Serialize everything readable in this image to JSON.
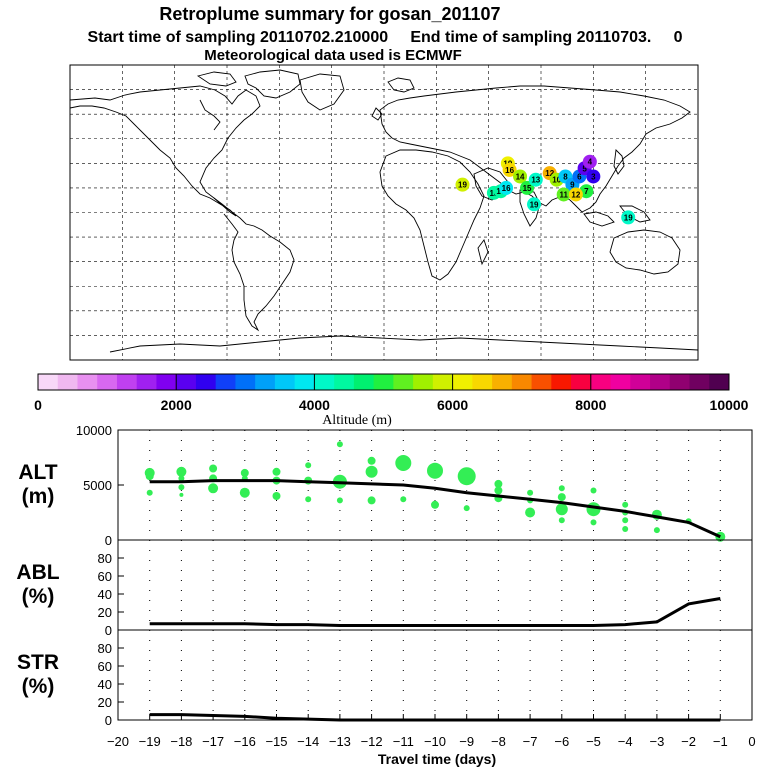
{
  "header": {
    "title": "Retroplume summary for gosan_201107",
    "sampling_line": "Start time of sampling 20110702.210000     End time of sampling 20110703.     0",
    "met_line": "Meteorological data used is ECMWF"
  },
  "colorbar": {
    "label": "Altitude (m)",
    "tick_labels": [
      "0",
      "2000",
      "4000",
      "6000",
      "8000",
      "10000"
    ],
    "min": 0,
    "max": 10000,
    "colors": [
      "#f8d8f8",
      "#f0b8f0",
      "#e890f0",
      "#d868f0",
      "#c040f0",
      "#a020f0",
      "#8000f0",
      "#5a00f0",
      "#3000f0",
      "#1040f8",
      "#0070f8",
      "#00a0f8",
      "#00c8f8",
      "#00e8f0",
      "#00f8c8",
      "#00f8a0",
      "#00f070",
      "#20f040",
      "#60f020",
      "#a0f000",
      "#d0f000",
      "#f0f000",
      "#f8d800",
      "#f8b000",
      "#f88800",
      "#f85000",
      "#f81800",
      "#f80040",
      "#f80080",
      "#f000a0",
      "#d00098",
      "#b00088",
      "#900070",
      "#700060",
      "#500050"
    ]
  },
  "chart_data": [
    {
      "type": "scatter",
      "name": "ALT",
      "panel_label": "ALT\n(m)",
      "panel_label_line1": "ALT",
      "panel_label_line2": "(m)",
      "ylim": [
        0,
        10000
      ],
      "yticks": [
        "10000",
        "5000",
        "0"
      ],
      "median_line": {
        "x": [
          -19,
          -18,
          -17,
          -16,
          -15,
          -14,
          -13,
          -12,
          -11,
          -10,
          -9,
          -8,
          -7,
          -6,
          -5,
          -4,
          -3,
          -2,
          -1
        ],
        "y": [
          5300,
          5300,
          5400,
          5400,
          5400,
          5300,
          5200,
          5100,
          5000,
          4700,
          4300,
          4000,
          3700,
          3400,
          3000,
          2600,
          2100,
          1600,
          300
        ]
      },
      "points": [
        {
          "x": -19,
          "y": 6100,
          "s": 5
        },
        {
          "x": -19,
          "y": 5800,
          "s": 4
        },
        {
          "x": -19,
          "y": 4300,
          "s": 3
        },
        {
          "x": -18,
          "y": 6200,
          "s": 5
        },
        {
          "x": -18,
          "y": 5600,
          "s": 3
        },
        {
          "x": -18,
          "y": 4800,
          "s": 3
        },
        {
          "x": -18,
          "y": 4100,
          "s": 2
        },
        {
          "x": -17,
          "y": 6500,
          "s": 4
        },
        {
          "x": -17,
          "y": 5600,
          "s": 4
        },
        {
          "x": -17,
          "y": 4700,
          "s": 5
        },
        {
          "x": -16,
          "y": 6100,
          "s": 4
        },
        {
          "x": -16,
          "y": 5600,
          "s": 3
        },
        {
          "x": -16,
          "y": 4300,
          "s": 5
        },
        {
          "x": -15,
          "y": 6200,
          "s": 4
        },
        {
          "x": -15,
          "y": 5400,
          "s": 4
        },
        {
          "x": -15,
          "y": 4000,
          "s": 4
        },
        {
          "x": -14,
          "y": 6800,
          "s": 3
        },
        {
          "x": -14,
          "y": 5400,
          "s": 4
        },
        {
          "x": -14,
          "y": 3700,
          "s": 3
        },
        {
          "x": -13,
          "y": 8700,
          "s": 3
        },
        {
          "x": -13,
          "y": 5300,
          "s": 7
        },
        {
          "x": -13,
          "y": 3600,
          "s": 3
        },
        {
          "x": -12,
          "y": 7200,
          "s": 4
        },
        {
          "x": -12,
          "y": 6200,
          "s": 6
        },
        {
          "x": -12,
          "y": 3600,
          "s": 4
        },
        {
          "x": -11,
          "y": 7000,
          "s": 8
        },
        {
          "x": -11,
          "y": 3700,
          "s": 3
        },
        {
          "x": -10,
          "y": 6300,
          "s": 8
        },
        {
          "x": -10,
          "y": 3200,
          "s": 4
        },
        {
          "x": -9,
          "y": 5800,
          "s": 9
        },
        {
          "x": -9,
          "y": 2900,
          "s": 3
        },
        {
          "x": -8,
          "y": 5100,
          "s": 4
        },
        {
          "x": -8,
          "y": 4500,
          "s": 4
        },
        {
          "x": -8,
          "y": 3800,
          "s": 4
        },
        {
          "x": -7,
          "y": 4300,
          "s": 3
        },
        {
          "x": -7,
          "y": 3600,
          "s": 3
        },
        {
          "x": -7,
          "y": 2500,
          "s": 5
        },
        {
          "x": -6,
          "y": 4700,
          "s": 3
        },
        {
          "x": -6,
          "y": 3900,
          "s": 4
        },
        {
          "x": -6,
          "y": 2800,
          "s": 6
        },
        {
          "x": -6,
          "y": 1800,
          "s": 3
        },
        {
          "x": -5,
          "y": 4500,
          "s": 3
        },
        {
          "x": -5,
          "y": 2800,
          "s": 7
        },
        {
          "x": -5,
          "y": 1600,
          "s": 3
        },
        {
          "x": -4,
          "y": 3200,
          "s": 3
        },
        {
          "x": -4,
          "y": 2500,
          "s": 3
        },
        {
          "x": -4,
          "y": 1800,
          "s": 3
        },
        {
          "x": -4,
          "y": 1000,
          "s": 3
        },
        {
          "x": -3,
          "y": 2300,
          "s": 5
        },
        {
          "x": -3,
          "y": 900,
          "s": 3
        },
        {
          "x": -2,
          "y": 1700,
          "s": 3
        },
        {
          "x": -1,
          "y": 300,
          "s": 5
        }
      ]
    },
    {
      "type": "line",
      "name": "ABL",
      "panel_label_line1": "ABL",
      "panel_label_line2": "(%)",
      "ylim": [
        0,
        100
      ],
      "yticks": [
        "80",
        "60",
        "40",
        "20",
        "0"
      ],
      "x": [
        -19,
        -18,
        -17,
        -16,
        -15,
        -14,
        -13,
        -12,
        -11,
        -10,
        -9,
        -8,
        -7,
        -6,
        -5,
        -4,
        -3,
        -2,
        -1
      ],
      "y": [
        7,
        7,
        7,
        7,
        6,
        6,
        5,
        5,
        5,
        5,
        5,
        5,
        5,
        5,
        5,
        6,
        9,
        29,
        35
      ]
    },
    {
      "type": "line",
      "name": "STR",
      "panel_label_line1": "STR",
      "panel_label_line2": "(%)",
      "ylim": [
        0,
        100
      ],
      "yticks": [
        "80",
        "60",
        "40",
        "20",
        "0"
      ],
      "x": [
        -19,
        -18,
        -17,
        -16,
        -15,
        -14,
        -13,
        -12,
        -11,
        -10,
        -9,
        -8,
        -7,
        -6,
        -5,
        -4,
        -3,
        -2,
        -1
      ],
      "y": [
        6,
        6,
        5,
        4,
        2,
        1,
        0,
        0,
        0,
        0,
        0,
        0,
        0,
        0,
        0,
        0,
        0,
        0,
        0
      ]
    }
  ],
  "xaxis": {
    "label": "Travel time (days)",
    "min": -20,
    "max": 0,
    "tick_labels": [
      "−20",
      "−19",
      "−18",
      "−17",
      "−16",
      "−15",
      "−14",
      "−13",
      "−12",
      "−11",
      "−10",
      "−9",
      "−8",
      "−7",
      "−6",
      "−5",
      "−4",
      "−3",
      "−2",
      "−1",
      "0"
    ]
  },
  "map": {
    "markers": [
      {
        "lon": 71,
        "lat": 30,
        "label": "19",
        "color": "#f0f000"
      },
      {
        "lon": 63,
        "lat": 12,
        "label": "18",
        "color": "#00f8a0"
      },
      {
        "lon": 67,
        "lat": 13,
        "label": "17",
        "color": "#00f8a0"
      },
      {
        "lon": 70,
        "lat": 15,
        "label": "16",
        "color": "#00e8f0"
      },
      {
        "lon": 45,
        "lat": 17,
        "label": "19",
        "color": "#d0f000"
      },
      {
        "lon": 72,
        "lat": 26,
        "label": "16",
        "color": "#f8d800"
      },
      {
        "lon": 78,
        "lat": 22,
        "label": "14",
        "color": "#a0f000"
      },
      {
        "lon": 82,
        "lat": 15,
        "label": "15",
        "color": "#20f040"
      },
      {
        "lon": 87,
        "lat": 20,
        "label": "13",
        "color": "#00f8c8"
      },
      {
        "lon": 95,
        "lat": 24,
        "label": "12",
        "color": "#f8b000"
      },
      {
        "lon": 99,
        "lat": 20,
        "label": "10",
        "color": "#a0f000"
      },
      {
        "lon": 104,
        "lat": 22,
        "label": "8",
        "color": "#00c8f8"
      },
      {
        "lon": 108,
        "lat": 17,
        "label": "9",
        "color": "#00a0f8"
      },
      {
        "lon": 112,
        "lat": 22,
        "label": "6",
        "color": "#0070f8"
      },
      {
        "lon": 115,
        "lat": 27,
        "label": "5",
        "color": "#5a00f0"
      },
      {
        "lon": 118,
        "lat": 31,
        "label": "4",
        "color": "#a020f0"
      },
      {
        "lon": 120,
        "lat": 22,
        "label": "3",
        "color": "#3000f0"
      },
      {
        "lon": 116,
        "lat": 13,
        "label": "7",
        "color": "#20f040"
      },
      {
        "lon": 103,
        "lat": 11,
        "label": "11",
        "color": "#60f020"
      },
      {
        "lon": 86,
        "lat": 5,
        "label": "19",
        "color": "#00f8c8"
      },
      {
        "lon": 110,
        "lat": 11,
        "label": "12",
        "color": "#f8d800"
      },
      {
        "lon": 140,
        "lat": -3,
        "label": "19",
        "color": "#00f8c8"
      }
    ]
  }
}
